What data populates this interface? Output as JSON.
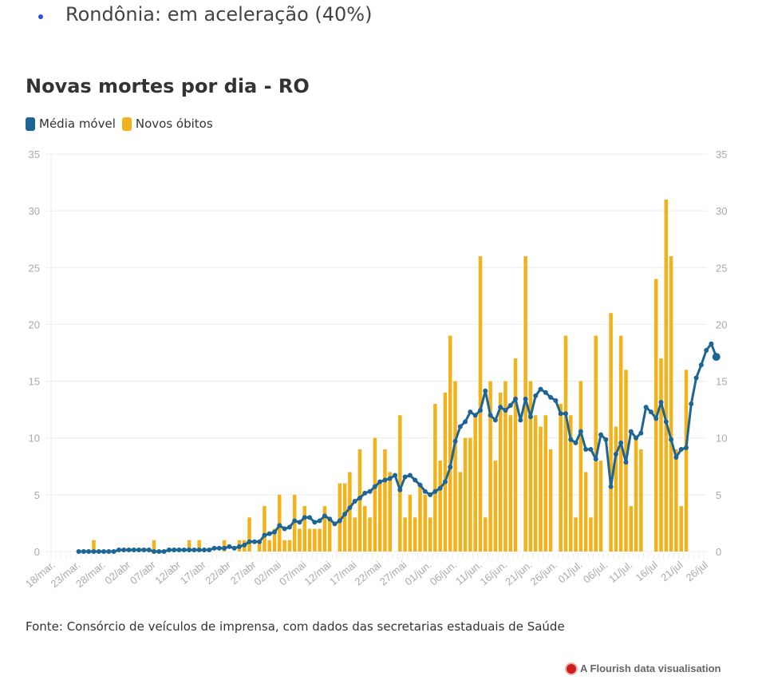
{
  "bullet": {
    "text": "Rondônia: em aceleração (40%)",
    "color": "#2b4fd8"
  },
  "chart_data": {
    "type": "bar",
    "title": "Novas mortes por dia - RO",
    "legend": [
      {
        "name": "Média móvel",
        "color": "#1d6594",
        "type": "line"
      },
      {
        "name": "Novos óbitos",
        "color": "#f2b21b",
        "type": "bar"
      }
    ],
    "legend_position": "top-left",
    "ylim": [
      0,
      35
    ],
    "yticks": [
      0,
      5,
      10,
      15,
      20,
      25,
      30,
      35
    ],
    "y_axis_both_sides": true,
    "grid": true,
    "start_date": "18/mar",
    "xtick_labels": [
      "18/mar.",
      "23/mar.",
      "28/mar.",
      "02/abr",
      "07/abr",
      "12/abr",
      "17/abr",
      "22/abr",
      "27/abr",
      "02/mai",
      "07/mai",
      "12/mai",
      "17/mai",
      "22/mai",
      "27/mai",
      "01/jun.",
      "06/jun.",
      "11/jun.",
      "16/jun.",
      "21/jun.",
      "26/jun.",
      "01/jul.",
      "06/jul.",
      "11/jul.",
      "16/jul",
      "21/jul",
      "26/jul"
    ],
    "xtick_day_offsets": [
      0,
      5,
      10,
      15,
      20,
      25,
      30,
      35,
      40,
      45,
      50,
      55,
      60,
      65,
      70,
      75,
      80,
      85,
      90,
      95,
      100,
      105,
      110,
      115,
      120,
      125,
      130
    ],
    "series": [
      {
        "name": "Novos óbitos",
        "start_day_offset": 0,
        "values": [
          0,
          0,
          0,
          0,
          0,
          0,
          0,
          0,
          1,
          0,
          0,
          0,
          0,
          0,
          0,
          0,
          0,
          0,
          0,
          0,
          1,
          0,
          0,
          0,
          0,
          0,
          0,
          1,
          0,
          1,
          0,
          0,
          0,
          0,
          1,
          0,
          0,
          1,
          1,
          3,
          0,
          1,
          4,
          1,
          2,
          5,
          1,
          1,
          5,
          2,
          4,
          2,
          2,
          2,
          4,
          3,
          0,
          6,
          6,
          7,
          3,
          9,
          4,
          3,
          10,
          6,
          9,
          7,
          0,
          12,
          3,
          5,
          3,
          6,
          5,
          3,
          13,
          8,
          14,
          19,
          15,
          7,
          10,
          10,
          12,
          26,
          3,
          15,
          8,
          14,
          15,
          12,
          17,
          0,
          26,
          15,
          12,
          11,
          12,
          9,
          0,
          13,
          19,
          12,
          3,
          15,
          7,
          3,
          19,
          8,
          0,
          21,
          11,
          19,
          16,
          4,
          10,
          9,
          0,
          0,
          24,
          17,
          31,
          26,
          9,
          4,
          16
        ],
        "visible_from_day": 0
      },
      {
        "name": "Média móvel",
        "start_day_offset": 5,
        "values": [
          0,
          0,
          0,
          0,
          0,
          0,
          0,
          0,
          0.14,
          0.14,
          0.14,
          0.14,
          0.14,
          0.14,
          0.14,
          0,
          0,
          0,
          0.14,
          0.14,
          0.14,
          0.14,
          0.14,
          0.14,
          0.14,
          0.14,
          0.14,
          0.29,
          0.29,
          0.29,
          0.43,
          0.29,
          0.43,
          0.57,
          0.86,
          0.86,
          0.86,
          1.43,
          1.57,
          1.71,
          2.29,
          2,
          2.14,
          2.71,
          2.57,
          3,
          3,
          2.57,
          2.71,
          3.14,
          2.86,
          2.43,
          2.71,
          3.29,
          3.86,
          4.43,
          4.71,
          5.14,
          5.29,
          5.71,
          6.14,
          6.29,
          6.43,
          6.71,
          5.43,
          6.57,
          6.71,
          6.29,
          5.86,
          5.29,
          5,
          5.29,
          5.57,
          6.14,
          7.43,
          9.71,
          11,
          11.43,
          12.29,
          12,
          12.43,
          14.14,
          12,
          11.57,
          12.71,
          12.43,
          12.86,
          13.43,
          11.57,
          13.43,
          11.86,
          13.71,
          14.29,
          14,
          13.57,
          13.29,
          12.14,
          12.14,
          9.86,
          9.57,
          10.57,
          9,
          9,
          8.14,
          10.29,
          9.86,
          5.71,
          8.57,
          9.57,
          7.86,
          10.57,
          10,
          10.43,
          12.71,
          12.29,
          11.71,
          13.14,
          11.43,
          9.86,
          8.29,
          9,
          9.14,
          13,
          15.29,
          16.43,
          17.71,
          18.29,
          17.14
        ]
      }
    ]
  },
  "footer": {
    "source": "Fonte: Consórcio de veículos de imprensa, com dados das secretarias estaduais de Saúde",
    "credit": "A Flourish data visualisation"
  }
}
